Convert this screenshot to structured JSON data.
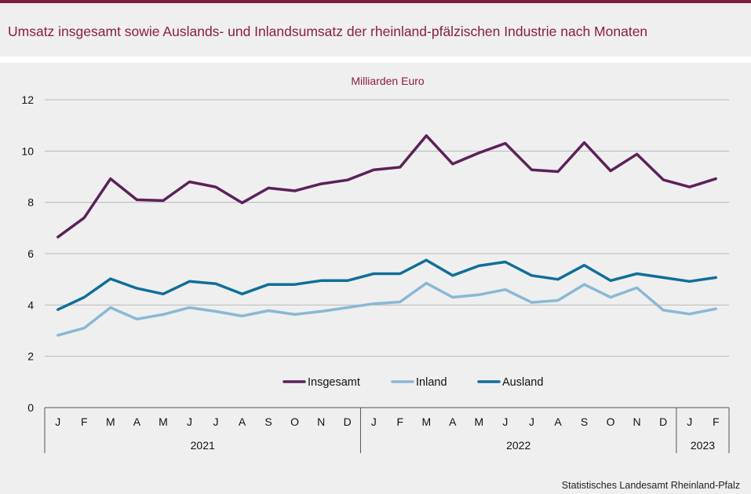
{
  "title": "Umsatz insgesamt sowie Auslands- und Inlandsumsatz der rheinland-pfälzischen Industrie nach Monaten",
  "source": "Statistisches Landesamt  Rheinland-Pfalz",
  "colors": {
    "accent": "#7a1f3d",
    "title": "#8b1e3f"
  },
  "chart_data": {
    "type": "line",
    "ylabel": "Milliarden Euro",
    "ylim": [
      0,
      12
    ],
    "yticks": [
      0,
      2,
      4,
      6,
      8,
      10,
      12
    ],
    "grid": true,
    "legend_position": "bottom-center",
    "categories": [
      "J",
      "F",
      "M",
      "A",
      "M",
      "J",
      "J",
      "A",
      "S",
      "O",
      "N",
      "D",
      "J",
      "F",
      "M",
      "A",
      "M",
      "J",
      "J",
      "A",
      "S",
      "O",
      "N",
      "D",
      "J",
      "F"
    ],
    "year_groups": [
      {
        "label": "2021",
        "count": 12
      },
      {
        "label": "2022",
        "count": 12
      },
      {
        "label": "2023",
        "count": 2
      }
    ],
    "series": [
      {
        "name": "Insgesamt",
        "color": "#5b2159",
        "values": [
          6.65,
          7.4,
          8.92,
          8.1,
          8.07,
          8.8,
          8.6,
          7.98,
          8.56,
          8.45,
          8.72,
          8.87,
          9.27,
          9.37,
          10.6,
          9.5,
          9.93,
          10.3,
          9.27,
          9.2,
          10.33,
          9.23,
          9.88,
          8.88,
          8.6,
          8.92
        ]
      },
      {
        "name": "Inland",
        "color": "#8ab8d6",
        "values": [
          2.82,
          3.1,
          3.9,
          3.45,
          3.63,
          3.9,
          3.75,
          3.57,
          3.78,
          3.63,
          3.75,
          3.9,
          4.05,
          4.12,
          4.85,
          4.3,
          4.4,
          4.6,
          4.1,
          4.18,
          4.8,
          4.3,
          4.67,
          3.8,
          3.65,
          3.85
        ]
      },
      {
        "name": "Ausland",
        "color": "#0f6f98",
        "values": [
          3.82,
          4.3,
          5.02,
          4.65,
          4.43,
          4.92,
          4.83,
          4.43,
          4.8,
          4.8,
          4.95,
          4.95,
          5.22,
          5.22,
          5.75,
          5.15,
          5.53,
          5.68,
          5.15,
          5.0,
          5.55,
          4.95,
          5.22,
          5.07,
          4.92,
          5.07
        ]
      }
    ]
  }
}
